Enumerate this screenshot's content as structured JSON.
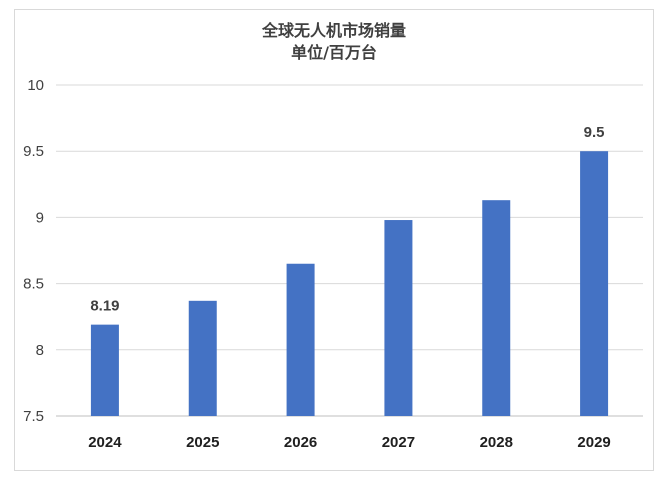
{
  "chart_data": {
    "type": "bar",
    "title": "全球无人机市场销量",
    "subtitle": "单位/百万台",
    "categories": [
      "2024",
      "2025",
      "2026",
      "2027",
      "2028",
      "2029"
    ],
    "values": [
      8.19,
      8.37,
      8.65,
      8.98,
      9.13,
      9.5
    ],
    "data_labels": [
      "8.19",
      "",
      "",
      "",
      "",
      "9.5"
    ],
    "ylim": [
      7.5,
      10
    ],
    "yticks": [
      "7.5",
      "8",
      "8.5",
      "9",
      "9.5",
      "10"
    ],
    "ytick_values": [
      7.5,
      8,
      8.5,
      9,
      9.5,
      10
    ],
    "grid": true,
    "bar_color": "#4472c4",
    "xlabel": "",
    "ylabel": ""
  }
}
